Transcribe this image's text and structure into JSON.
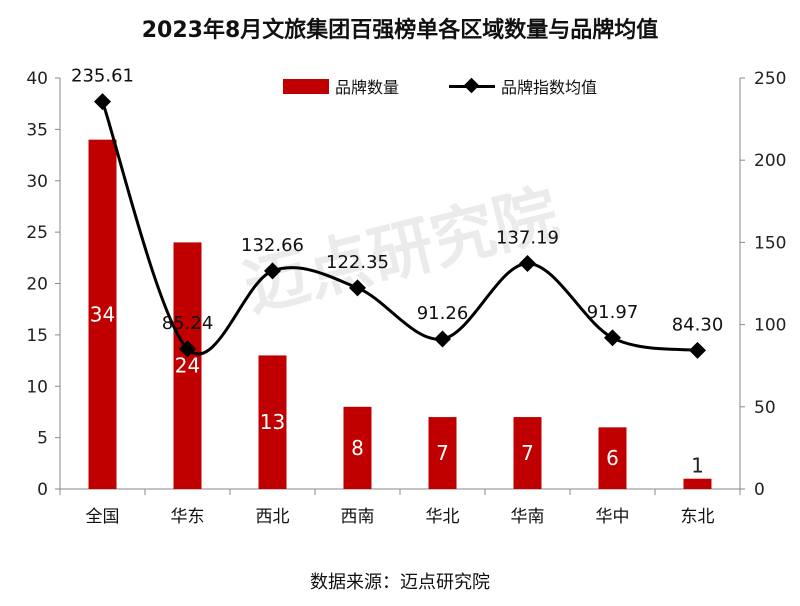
{
  "page": {
    "title": "2023年8月文旅集团百强榜单各区域数量与品牌均值",
    "source": "数据来源：迈点研究院",
    "watermark": "迈点研究院"
  },
  "colors": {
    "bar": "#c00000",
    "line": "#000000",
    "axis": "#888888"
  },
  "chart_data": {
    "type": "bar",
    "title": "2023年8月文旅集团百强榜单各区域数量与品牌均值",
    "categories": [
      "全国",
      "华东",
      "西北",
      "西南",
      "华北",
      "华南",
      "华中",
      "东北"
    ],
    "series": [
      {
        "name": "品牌数量",
        "type": "bar",
        "axis": "left",
        "values": [
          34,
          24,
          13,
          8,
          7,
          7,
          6,
          1
        ]
      },
      {
        "name": "品牌指数均值",
        "type": "line",
        "axis": "right",
        "values": [
          235.61,
          85.24,
          132.66,
          122.35,
          91.26,
          137.19,
          91.97,
          84.3
        ],
        "labels": [
          "235.61",
          "85.24",
          "132.66",
          "122.35",
          "91.26",
          "137.19",
          "91.97",
          "84.30"
        ]
      }
    ],
    "y_left": {
      "min": 0,
      "max": 40,
      "ticks": [
        0,
        5,
        10,
        15,
        20,
        25,
        30,
        35,
        40
      ]
    },
    "y_right": {
      "min": 0,
      "max": 250,
      "ticks": [
        0,
        50,
        100,
        150,
        200,
        250
      ]
    },
    "legend_position": "top",
    "grid": false
  }
}
